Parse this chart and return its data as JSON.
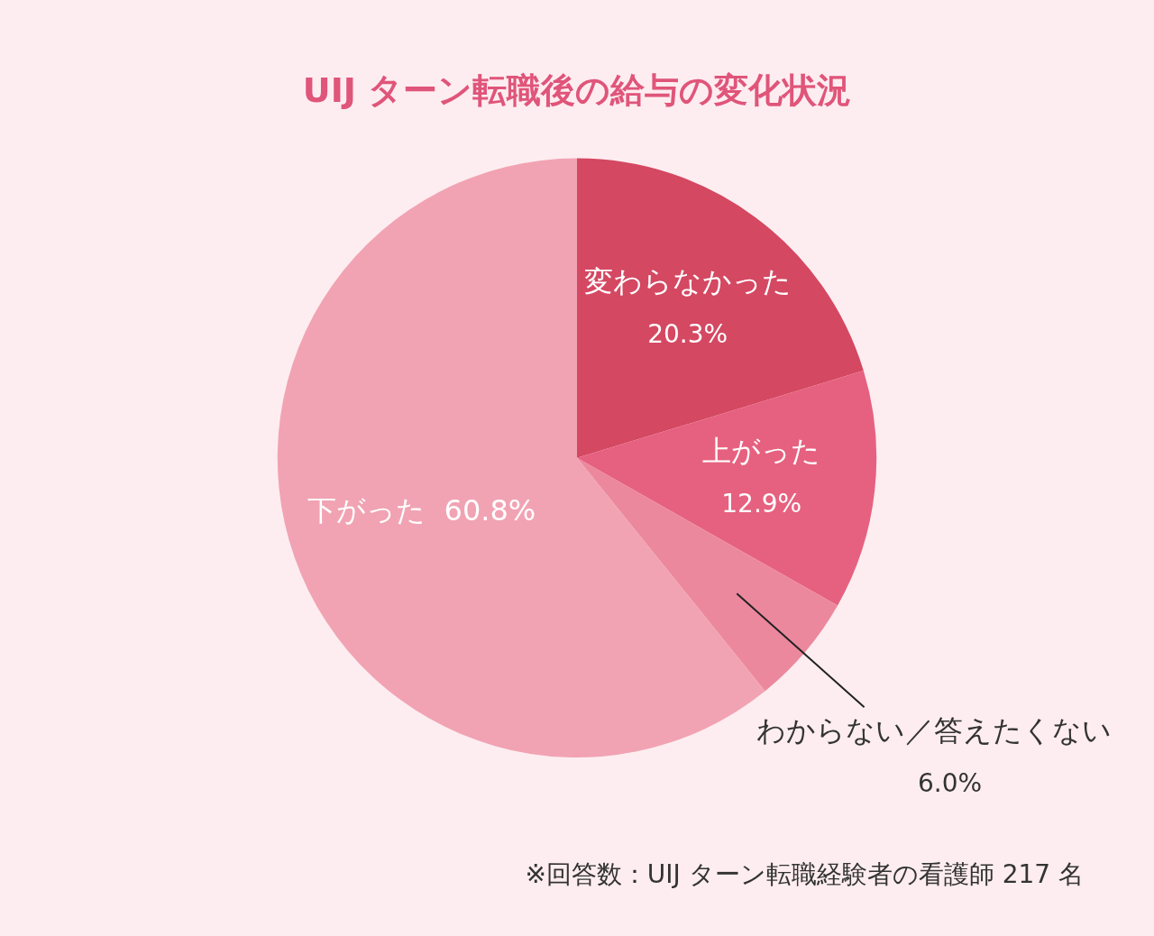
{
  "chart_data": {
    "type": "pie",
    "title": "UIJ ターン転職後の給与の変化状況",
    "categories": [
      "変わらなかった",
      "上がった",
      "わからない／答えたくない",
      "下がった"
    ],
    "values": [
      20.3,
      12.9,
      6.0,
      60.8
    ],
    "value_labels": [
      "20.3%",
      "12.9%",
      "6.0%",
      "60.8%"
    ],
    "colors": [
      "#d44862",
      "#e6617f",
      "#ec889d",
      "#f1a3b3"
    ],
    "legend": false,
    "annotations": [
      "※回答数：UIJ ターン転職経験者の看護師 217 名"
    ]
  }
}
